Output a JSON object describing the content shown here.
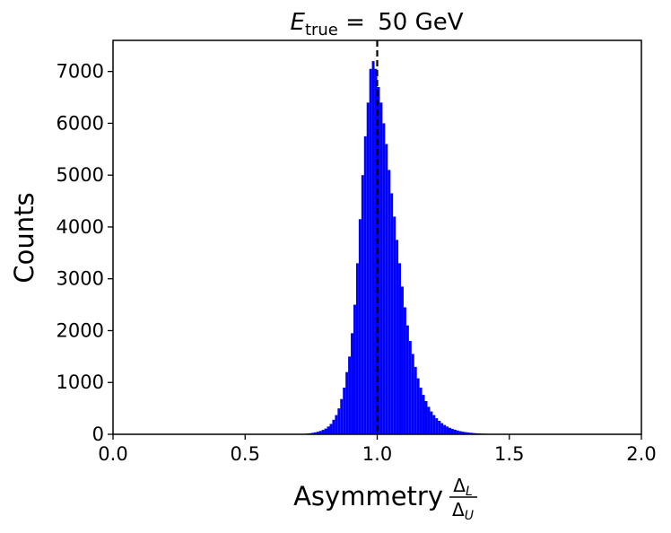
{
  "chart_data": {
    "type": "bar",
    "title": {
      "var": "E",
      "sub": "true",
      "eq": " = ",
      "value": "50 GeV"
    },
    "xlabel": {
      "text": "Asymmetry",
      "num_symbol": "Δ",
      "num_sub": "L",
      "den_symbol": "Δ",
      "den_sub": "U"
    },
    "ylabel": "Counts",
    "xlim": [
      0.0,
      2.0
    ],
    "ylim": [
      0,
      7600
    ],
    "xticks": [
      "0.0",
      "0.5",
      "1.0",
      "1.5",
      "2.0"
    ],
    "yticks": [
      "0",
      "1000",
      "2000",
      "3000",
      "4000",
      "5000",
      "6000",
      "7000"
    ],
    "bar_color": "#0000ff",
    "reference_line": {
      "x": 1.0,
      "style": "dashed",
      "color": "#000000"
    },
    "grid": false,
    "bin_width": 0.01,
    "bins_x_start": [
      0.7,
      0.71,
      0.72,
      0.73,
      0.74,
      0.75,
      0.76,
      0.77,
      0.78,
      0.79,
      0.8,
      0.81,
      0.82,
      0.83,
      0.84,
      0.85,
      0.86,
      0.87,
      0.88,
      0.89,
      0.9,
      0.91,
      0.92,
      0.93,
      0.94,
      0.95,
      0.96,
      0.97,
      0.98,
      0.99,
      1.0,
      1.01,
      1.02,
      1.03,
      1.04,
      1.05,
      1.06,
      1.07,
      1.08,
      1.09,
      1.1,
      1.11,
      1.12,
      1.13,
      1.14,
      1.15,
      1.16,
      1.17,
      1.18,
      1.19,
      1.2,
      1.21,
      1.22,
      1.23,
      1.24,
      1.25,
      1.26,
      1.27,
      1.28,
      1.29,
      1.3,
      1.31,
      1.32,
      1.33,
      1.34,
      1.35,
      1.36,
      1.37,
      1.38,
      1.39,
      1.4,
      1.41,
      1.42,
      1.43,
      1.44,
      1.45,
      1.46,
      1.47,
      1.48,
      1.49,
      1.5,
      1.51,
      1.52,
      1.53,
      1.54,
      1.55,
      1.56,
      1.57,
      1.58,
      1.59,
      1.6,
      1.61,
      1.62
    ],
    "counts": [
      5,
      8,
      10,
      15,
      20,
      28,
      38,
      50,
      65,
      85,
      110,
      150,
      200,
      280,
      370,
      500,
      680,
      900,
      1200,
      1500,
      1950,
      2500,
      3300,
      4150,
      5000,
      5750,
      6400,
      7050,
      7200,
      7050,
      6700,
      6400,
      6000,
      5600,
      5100,
      4650,
      4200,
      3750,
      3300,
      2850,
      2450,
      2100,
      1800,
      1550,
      1300,
      1080,
      900,
      760,
      640,
      530,
      440,
      370,
      310,
      260,
      215,
      180,
      150,
      125,
      105,
      88,
      73,
      60,
      50,
      42,
      35,
      29,
      24,
      20,
      17,
      14,
      12,
      10,
      8,
      7,
      6,
      5,
      4,
      3,
      3,
      2,
      2,
      2,
      1,
      1,
      1,
      1,
      1,
      1,
      0,
      0,
      0,
      0,
      0
    ]
  }
}
